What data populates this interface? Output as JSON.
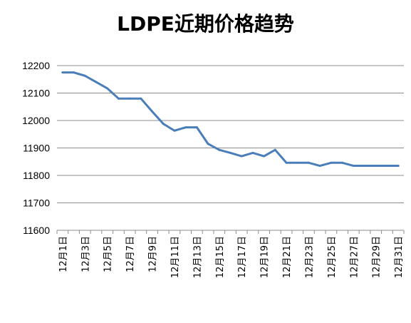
{
  "chart_data": {
    "type": "line",
    "title": "LDPE近期价格趋势",
    "xlabel": "",
    "ylabel": "",
    "ylim": [
      11600,
      12200
    ],
    "yticks": [
      11600,
      11700,
      11800,
      11900,
      12000,
      12100,
      12200
    ],
    "grid": true,
    "legend": "none",
    "color": "#4a7ebb",
    "x": [
      "12月1日",
      "12月2日",
      "12月3日",
      "12月4日",
      "12月5日",
      "12月6日",
      "12月7日",
      "12月8日",
      "12月9日",
      "12月10日",
      "12月11日",
      "12月12日",
      "12月13日",
      "12月14日",
      "12月15日",
      "12月16日",
      "12月17日",
      "12月18日",
      "12月19日",
      "12月20日",
      "12月21日",
      "12月22日",
      "12月23日",
      "12月24日",
      "12月25日",
      "12月26日",
      "12月27日",
      "12月28日",
      "12月29日",
      "12月30日",
      "12月31日"
    ],
    "xtick_labels": [
      "12月1日",
      "12月3日",
      "12月5日",
      "12月7日",
      "12月9日",
      "12月11日",
      "12月13日",
      "12月15日",
      "12月17日",
      "12月19日",
      "12月21日",
      "12月23日",
      "12月25日",
      "12月27日",
      "12月29日",
      "12月31日"
    ],
    "series": [
      {
        "values": [
          12175,
          12175,
          12163,
          12140,
          12117,
          12080,
          12080,
          12080,
          12033,
          11988,
          11963,
          11975,
          11975,
          11915,
          11893,
          11882,
          11870,
          11882,
          11870,
          11893,
          11846,
          11846,
          11846,
          11835,
          11846,
          11846,
          11835,
          11835,
          11835,
          11835,
          11835
        ]
      }
    ]
  }
}
